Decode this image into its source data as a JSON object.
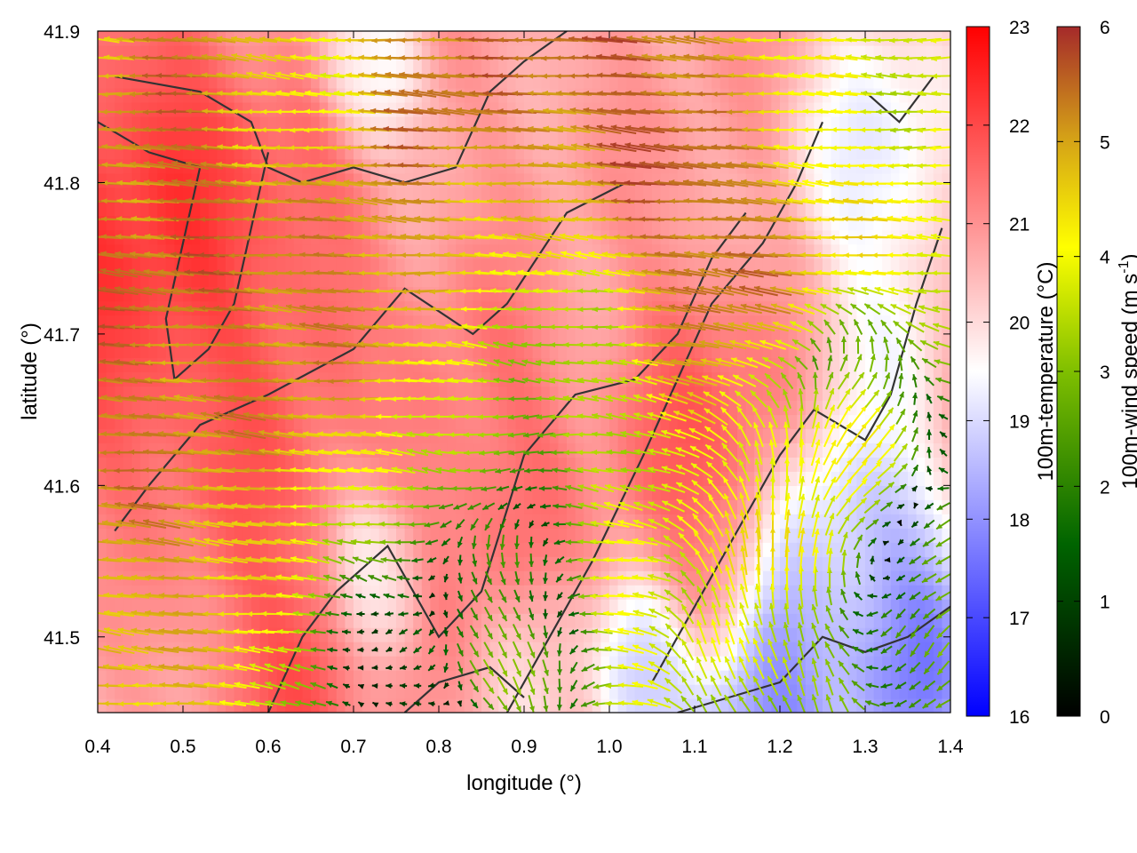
{
  "chart_data": {
    "type": "heatmap",
    "title": "",
    "xlabel": "longitude (°)",
    "ylabel": "latitude (°)",
    "xlim": [
      0.4,
      1.4
    ],
    "ylim": [
      41.45,
      41.9
    ],
    "x_ticks": [
      "0.4",
      "0.5",
      "0.6",
      "0.7",
      "0.8",
      "0.9",
      "1.0",
      "1.1",
      "1.2",
      "1.3",
      "1.4"
    ],
    "y_ticks": [
      "41.5",
      "41.6",
      "41.7",
      "41.8",
      "41.9"
    ],
    "grid": false,
    "legend": "none",
    "temperature_colorbar": {
      "label": "100m-temperature (°C)",
      "range": [
        16,
        23
      ],
      "ticks": [
        "16",
        "17",
        "18",
        "19",
        "20",
        "21",
        "22",
        "23"
      ],
      "colors": [
        "#0000ff",
        "#ffffff",
        "#ff0000"
      ]
    },
    "wind_colorbar": {
      "label_main": "100m-wind speed (m s",
      "label_sup": "-1",
      "label_end": ")",
      "range": [
        0,
        6
      ],
      "ticks": [
        "0",
        "1",
        "2",
        "3",
        "4",
        "5",
        "6"
      ],
      "colors": [
        "#000000",
        "#006400",
        "#7fbf00",
        "#ffff00",
        "#d4a017",
        "#a52a2a"
      ]
    },
    "temperature_field": {
      "base_c": 20.8,
      "features": [
        {
          "lon": 0.45,
          "lat": 41.76,
          "c": 22.6,
          "r": 0.11
        },
        {
          "lon": 0.6,
          "lat": 41.74,
          "c": 22.0,
          "r": 0.08
        },
        {
          "lon": 0.58,
          "lat": 41.6,
          "c": 21.8,
          "r": 0.07
        },
        {
          "lon": 0.62,
          "lat": 41.48,
          "c": 22.0,
          "r": 0.06
        },
        {
          "lon": 0.85,
          "lat": 41.62,
          "c": 21.6,
          "r": 0.08
        },
        {
          "lon": 1.1,
          "lat": 41.64,
          "c": 21.8,
          "r": 0.07
        },
        {
          "lon": 1.12,
          "lat": 41.53,
          "c": 21.7,
          "r": 0.05
        },
        {
          "lon": 0.72,
          "lat": 41.88,
          "c": 19.2,
          "r": 0.04
        },
        {
          "lon": 1.32,
          "lat": 41.82,
          "c": 19.0,
          "r": 0.07
        },
        {
          "lon": 1.32,
          "lat": 41.7,
          "c": 19.3,
          "r": 0.05
        },
        {
          "lon": 1.3,
          "lat": 41.55,
          "c": 18.3,
          "r": 0.07
        },
        {
          "lon": 1.35,
          "lat": 41.49,
          "c": 16.9,
          "r": 0.06
        },
        {
          "lon": 1.18,
          "lat": 41.46,
          "c": 17.2,
          "r": 0.08
        },
        {
          "lon": 1.05,
          "lat": 41.47,
          "c": 18.6,
          "r": 0.05
        },
        {
          "lon": 0.73,
          "lat": 41.54,
          "c": 19.6,
          "r": 0.04
        },
        {
          "lon": 0.92,
          "lat": 41.47,
          "c": 20.0,
          "r": 0.05
        }
      ]
    },
    "wind_field": {
      "features": [
        {
          "lon": 0.7,
          "lat": 41.77,
          "u": -5.6,
          "v": 0.3,
          "r": 0.2
        },
        {
          "lon": 1.1,
          "lat": 41.76,
          "u": -5.8,
          "v": 0.6,
          "r": 0.16
        },
        {
          "lon": 0.45,
          "lat": 41.66,
          "u": -5.2,
          "v": 0.5,
          "r": 0.12
        },
        {
          "lon": 0.6,
          "lat": 41.57,
          "u": -4.2,
          "v": 0.6,
          "r": 0.12
        },
        {
          "lon": 0.85,
          "lat": 41.64,
          "u": -2.2,
          "v": 0.2,
          "r": 0.12
        },
        {
          "lon": 0.97,
          "lat": 41.66,
          "u": -0.6,
          "v": 0.2,
          "r": 0.09
        },
        {
          "lon": 0.72,
          "lat": 41.5,
          "u": 1.0,
          "v": 0.0,
          "r": 0.09
        },
        {
          "lon": 0.88,
          "lat": 41.53,
          "u": 3.8,
          "v": -3.6,
          "r": 0.07
        },
        {
          "lon": 1.18,
          "lat": 41.57,
          "u": 0.4,
          "v": 5.2,
          "r": 0.09
        },
        {
          "lon": 1.27,
          "lat": 41.62,
          "u": 4.2,
          "v": 3.0,
          "r": 0.07
        },
        {
          "lon": 1.2,
          "lat": 41.48,
          "u": -1.2,
          "v": 2.0,
          "r": 0.08
        },
        {
          "lon": 1.35,
          "lat": 41.52,
          "u": -1.5,
          "v": -1.8,
          "r": 0.06
        },
        {
          "lon": 0.65,
          "lat": 41.86,
          "u": -2.2,
          "v": 0.4,
          "r": 0.07
        },
        {
          "lon": 1.25,
          "lat": 41.87,
          "u": -2.8,
          "v": 0.0,
          "r": 0.1
        },
        {
          "lon": 1.0,
          "lat": 41.58,
          "u": -3.8,
          "v": 0.6,
          "r": 0.08
        }
      ]
    }
  }
}
